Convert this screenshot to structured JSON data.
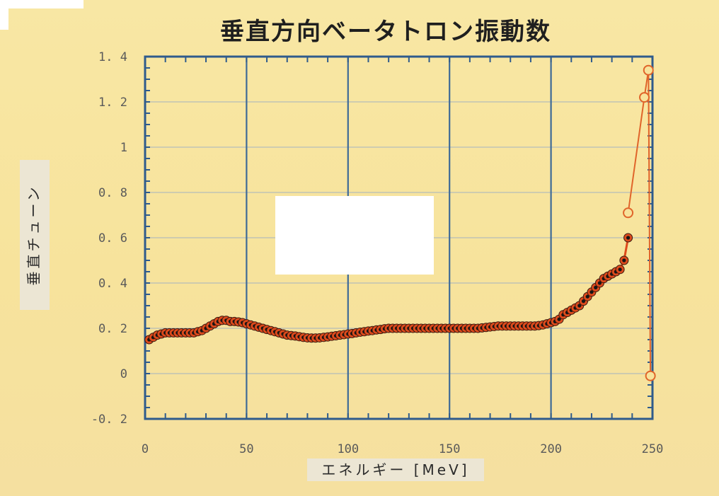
{
  "chart_data": {
    "type": "line",
    "title": "垂直方向ベータトロン振動数",
    "xlabel": "エネルギー [MeV]",
    "ylabel": "垂直チューン",
    "xlim": [
      0,
      250
    ],
    "ylim": [
      -0.2,
      1.4
    ],
    "x_ticks": [
      "0",
      "50",
      "100",
      "150",
      "200",
      "250"
    ],
    "y_ticks": [
      "1. 4",
      "1. 2",
      "1",
      "0. 8",
      "0. 6",
      "0. 4",
      "0. 2",
      "0",
      "-0. 2"
    ],
    "grid": true,
    "series": [
      {
        "color": "#dd4a1c",
        "marker": "filled-circle",
        "x": [
          2,
          4,
          6,
          8,
          10,
          12,
          14,
          16,
          18,
          20,
          22,
          24,
          26,
          28,
          30,
          32,
          34,
          36,
          38,
          40,
          42,
          44,
          46,
          48,
          50,
          52,
          54,
          56,
          58,
          60,
          62,
          64,
          66,
          68,
          70,
          72,
          74,
          76,
          78,
          80,
          82,
          84,
          86,
          88,
          90,
          92,
          94,
          96,
          98,
          100,
          102,
          104,
          106,
          108,
          110,
          112,
          114,
          116,
          118,
          120,
          122,
          124,
          126,
          128,
          130,
          132,
          134,
          136,
          138,
          140,
          142,
          144,
          146,
          148,
          150,
          152,
          154,
          156,
          158,
          160,
          162,
          164,
          166,
          168,
          170,
          172,
          174,
          176,
          178,
          180,
          182,
          184,
          186,
          188,
          190,
          192,
          194,
          196,
          198,
          200,
          202,
          204,
          206,
          208,
          210,
          212,
          214,
          216,
          218,
          220,
          222,
          224,
          226,
          228,
          230,
          232,
          234,
          236,
          238
        ],
        "values": [
          0.15,
          0.16,
          0.17,
          0.175,
          0.18,
          0.18,
          0.18,
          0.18,
          0.18,
          0.18,
          0.18,
          0.18,
          0.185,
          0.19,
          0.2,
          0.21,
          0.22,
          0.23,
          0.235,
          0.235,
          0.23,
          0.23,
          0.228,
          0.225,
          0.22,
          0.215,
          0.21,
          0.205,
          0.2,
          0.195,
          0.19,
          0.185,
          0.18,
          0.175,
          0.17,
          0.168,
          0.166,
          0.163,
          0.16,
          0.158,
          0.157,
          0.157,
          0.158,
          0.16,
          0.162,
          0.165,
          0.167,
          0.17,
          0.172,
          0.175,
          0.177,
          0.18,
          0.183,
          0.185,
          0.188,
          0.19,
          0.193,
          0.195,
          0.198,
          0.2,
          0.2,
          0.2,
          0.2,
          0.2,
          0.2,
          0.2,
          0.2,
          0.2,
          0.2,
          0.2,
          0.2,
          0.2,
          0.2,
          0.2,
          0.2,
          0.2,
          0.2,
          0.2,
          0.2,
          0.2,
          0.2,
          0.2,
          0.202,
          0.204,
          0.206,
          0.208,
          0.21,
          0.21,
          0.21,
          0.21,
          0.21,
          0.21,
          0.21,
          0.21,
          0.21,
          0.21,
          0.212,
          0.215,
          0.22,
          0.225,
          0.23,
          0.24,
          0.26,
          0.27,
          0.28,
          0.29,
          0.3,
          0.32,
          0.34,
          0.36,
          0.38,
          0.4,
          0.42,
          0.43,
          0.44,
          0.45,
          0.46,
          0.5,
          0.6
        ]
      },
      {
        "color": "#e0642a",
        "marker": "open-circle",
        "x": [
          238,
          246,
          248,
          249
        ],
        "values": [
          0.71,
          1.22,
          1.34,
          -0.01
        ]
      }
    ]
  }
}
